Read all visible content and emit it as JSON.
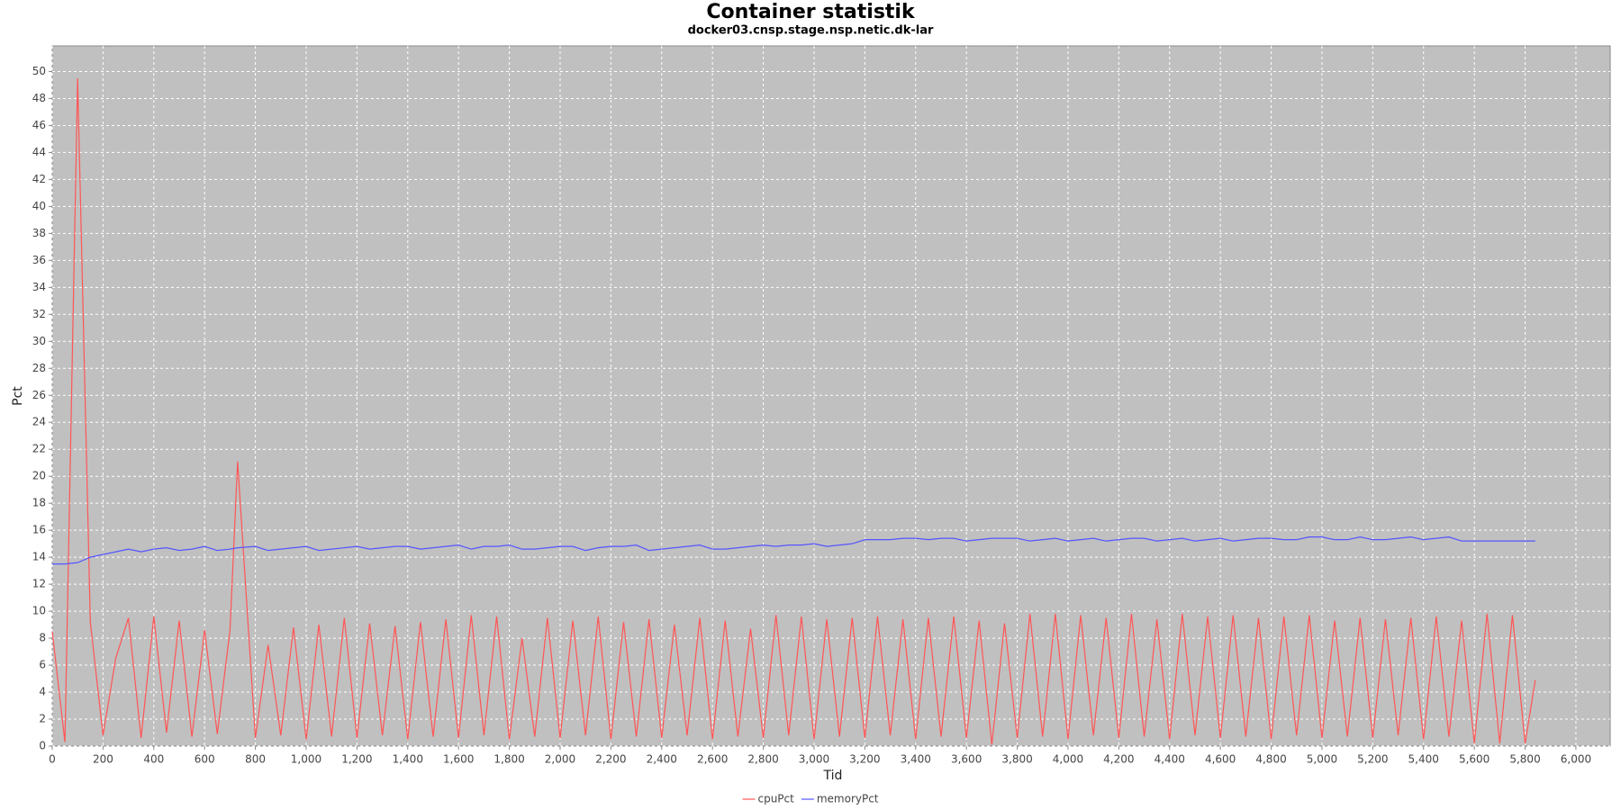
{
  "chart_data": {
    "type": "line",
    "title": "Container statistik",
    "subtitle": "docker03.cnsp.stage.nsp.netic.dk-lar",
    "x_label": "Tid",
    "y_label": "Pct",
    "xlim": [
      0,
      6135
    ],
    "ylim": [
      0,
      51.9
    ],
    "grid": true,
    "legend": "bottom",
    "background": "#c0c0c0",
    "xticks": [
      0,
      200,
      400,
      600,
      800,
      {
        "value": 1000,
        "label": "1,000"
      },
      {
        "value": 1200,
        "label": "1,200"
      },
      {
        "value": 1400,
        "label": "1,400"
      },
      {
        "value": 1600,
        "label": "1,600"
      },
      {
        "value": 1800,
        "label": "1,800"
      },
      {
        "value": 2000,
        "label": "2,000"
      },
      {
        "value": 2200,
        "label": "2,200"
      },
      {
        "value": 2400,
        "label": "2,400"
      },
      {
        "value": 2600,
        "label": "2,600"
      },
      {
        "value": 2800,
        "label": "2,800"
      },
      {
        "value": 3000,
        "label": "3,000"
      },
      {
        "value": 3200,
        "label": "3,200"
      },
      {
        "value": 3400,
        "label": "3,400"
      },
      {
        "value": 3600,
        "label": "3,600"
      },
      {
        "value": 3800,
        "label": "3,800"
      },
      {
        "value": 4000,
        "label": "4,000"
      },
      {
        "value": 4200,
        "label": "4,200"
      },
      {
        "value": 4400,
        "label": "4,400"
      },
      {
        "value": 4600,
        "label": "4,600"
      },
      {
        "value": 4800,
        "label": "4,800"
      },
      {
        "value": 5000,
        "label": "5,000"
      },
      {
        "value": 5200,
        "label": "5,200"
      },
      {
        "value": 5400,
        "label": "5,400"
      },
      {
        "value": 5600,
        "label": "5,600"
      },
      {
        "value": 5800,
        "label": "5,800"
      },
      {
        "value": 6000,
        "label": "6,000"
      }
    ],
    "yticks": [
      0,
      2,
      4,
      6,
      8,
      10,
      12,
      14,
      16,
      18,
      20,
      22,
      24,
      26,
      28,
      30,
      32,
      34,
      36,
      38,
      40,
      42,
      44,
      46,
      48,
      50
    ],
    "x": [
      0,
      50,
      100,
      150,
      200,
      250,
      300,
      350,
      400,
      450,
      500,
      550,
      600,
      650,
      700,
      730,
      800,
      850,
      900,
      950,
      1000,
      1050,
      1100,
      1150,
      1200,
      1250,
      1300,
      1350,
      1400,
      1450,
      1500,
      1550,
      1600,
      1650,
      1700,
      1750,
      1800,
      1850,
      1900,
      1950,
      2000,
      2050,
      2100,
      2150,
      2200,
      2250,
      2300,
      2350,
      2400,
      2450,
      2500,
      2550,
      2600,
      2650,
      2700,
      2750,
      2800,
      2850,
      2900,
      2950,
      3000,
      3050,
      3100,
      3150,
      3200,
      3250,
      3300,
      3350,
      3400,
      3450,
      3500,
      3550,
      3600,
      3650,
      3700,
      3750,
      3800,
      3850,
      3900,
      3950,
      4000,
      4050,
      4100,
      4150,
      4200,
      4250,
      4300,
      4350,
      4400,
      4450,
      4500,
      4550,
      4600,
      4650,
      4700,
      4750,
      4800,
      4850,
      4900,
      4950,
      5000,
      5050,
      5100,
      5150,
      5200,
      5250,
      5300,
      5350,
      5400,
      5450,
      5500,
      5550,
      5600,
      5650,
      5700,
      5750,
      5800,
      5840
    ],
    "series": [
      {
        "name": "cpuPct",
        "color": "#ff5555",
        "values": [
          8.5,
          0.3,
          49.5,
          9.2,
          0.8,
          6.5,
          9.5,
          0.6,
          9.6,
          1.0,
          9.3,
          0.7,
          8.6,
          0.9,
          8.6,
          21.1,
          0.6,
          7.5,
          0.8,
          8.8,
          0.5,
          9.0,
          0.7,
          9.5,
          0.6,
          9.1,
          0.8,
          8.9,
          0.5,
          9.2,
          0.7,
          9.4,
          0.6,
          9.7,
          0.8,
          9.6,
          0.5,
          8.0,
          0.7,
          9.5,
          0.6,
          9.3,
          0.8,
          9.6,
          0.5,
          9.2,
          0.7,
          9.4,
          0.6,
          9.0,
          0.8,
          9.5,
          0.5,
          9.3,
          0.7,
          8.7,
          0.6,
          9.7,
          0.8,
          9.6,
          0.5,
          9.4,
          0.7,
          9.5,
          0.6,
          9.6,
          0.8,
          9.4,
          0.5,
          9.5,
          0.7,
          9.6,
          0.6,
          9.3,
          0.1,
          9.1,
          0.6,
          9.8,
          0.7,
          9.8,
          0.5,
          9.7,
          0.8,
          9.5,
          0.6,
          9.8,
          0.7,
          9.4,
          0.5,
          9.8,
          0.8,
          9.6,
          0.6,
          9.7,
          0.7,
          9.5,
          0.5,
          9.6,
          0.8,
          9.7,
          0.6,
          9.3,
          0.7,
          9.5,
          0.6,
          9.4,
          0.8,
          9.5,
          0.5,
          9.6,
          0.7,
          9.3,
          0.2,
          9.8,
          0.2,
          9.7,
          0.2,
          4.9
        ]
      },
      {
        "name": "memoryPct",
        "color": "#5555ff",
        "values": [
          13.5,
          13.5,
          13.6,
          14.0,
          14.2,
          14.4,
          14.6,
          14.4,
          14.6,
          14.7,
          14.5,
          14.6,
          14.8,
          14.5,
          14.6,
          14.7,
          14.8,
          14.5,
          14.6,
          14.7,
          14.8,
          14.5,
          14.6,
          14.7,
          14.8,
          14.6,
          14.7,
          14.8,
          14.8,
          14.6,
          14.7,
          14.8,
          14.9,
          14.6,
          14.8,
          14.8,
          14.9,
          14.6,
          14.6,
          14.7,
          14.8,
          14.8,
          14.5,
          14.7,
          14.8,
          14.8,
          14.9,
          14.5,
          14.6,
          14.7,
          14.8,
          14.9,
          14.6,
          14.6,
          14.7,
          14.8,
          14.9,
          14.8,
          14.9,
          14.9,
          15.0,
          14.8,
          14.9,
          15.0,
          15.3,
          15.3,
          15.3,
          15.4,
          15.4,
          15.3,
          15.4,
          15.4,
          15.2,
          15.3,
          15.4,
          15.4,
          15.4,
          15.2,
          15.3,
          15.4,
          15.2,
          15.3,
          15.4,
          15.2,
          15.3,
          15.4,
          15.4,
          15.2,
          15.3,
          15.4,
          15.2,
          15.3,
          15.4,
          15.2,
          15.3,
          15.4,
          15.4,
          15.3,
          15.3,
          15.5,
          15.5,
          15.3,
          15.3,
          15.5,
          15.3,
          15.3,
          15.4,
          15.5,
          15.3,
          15.4,
          15.5,
          15.2,
          15.2,
          15.2,
          15.2,
          15.2,
          15.2,
          15.2
        ]
      }
    ]
  }
}
